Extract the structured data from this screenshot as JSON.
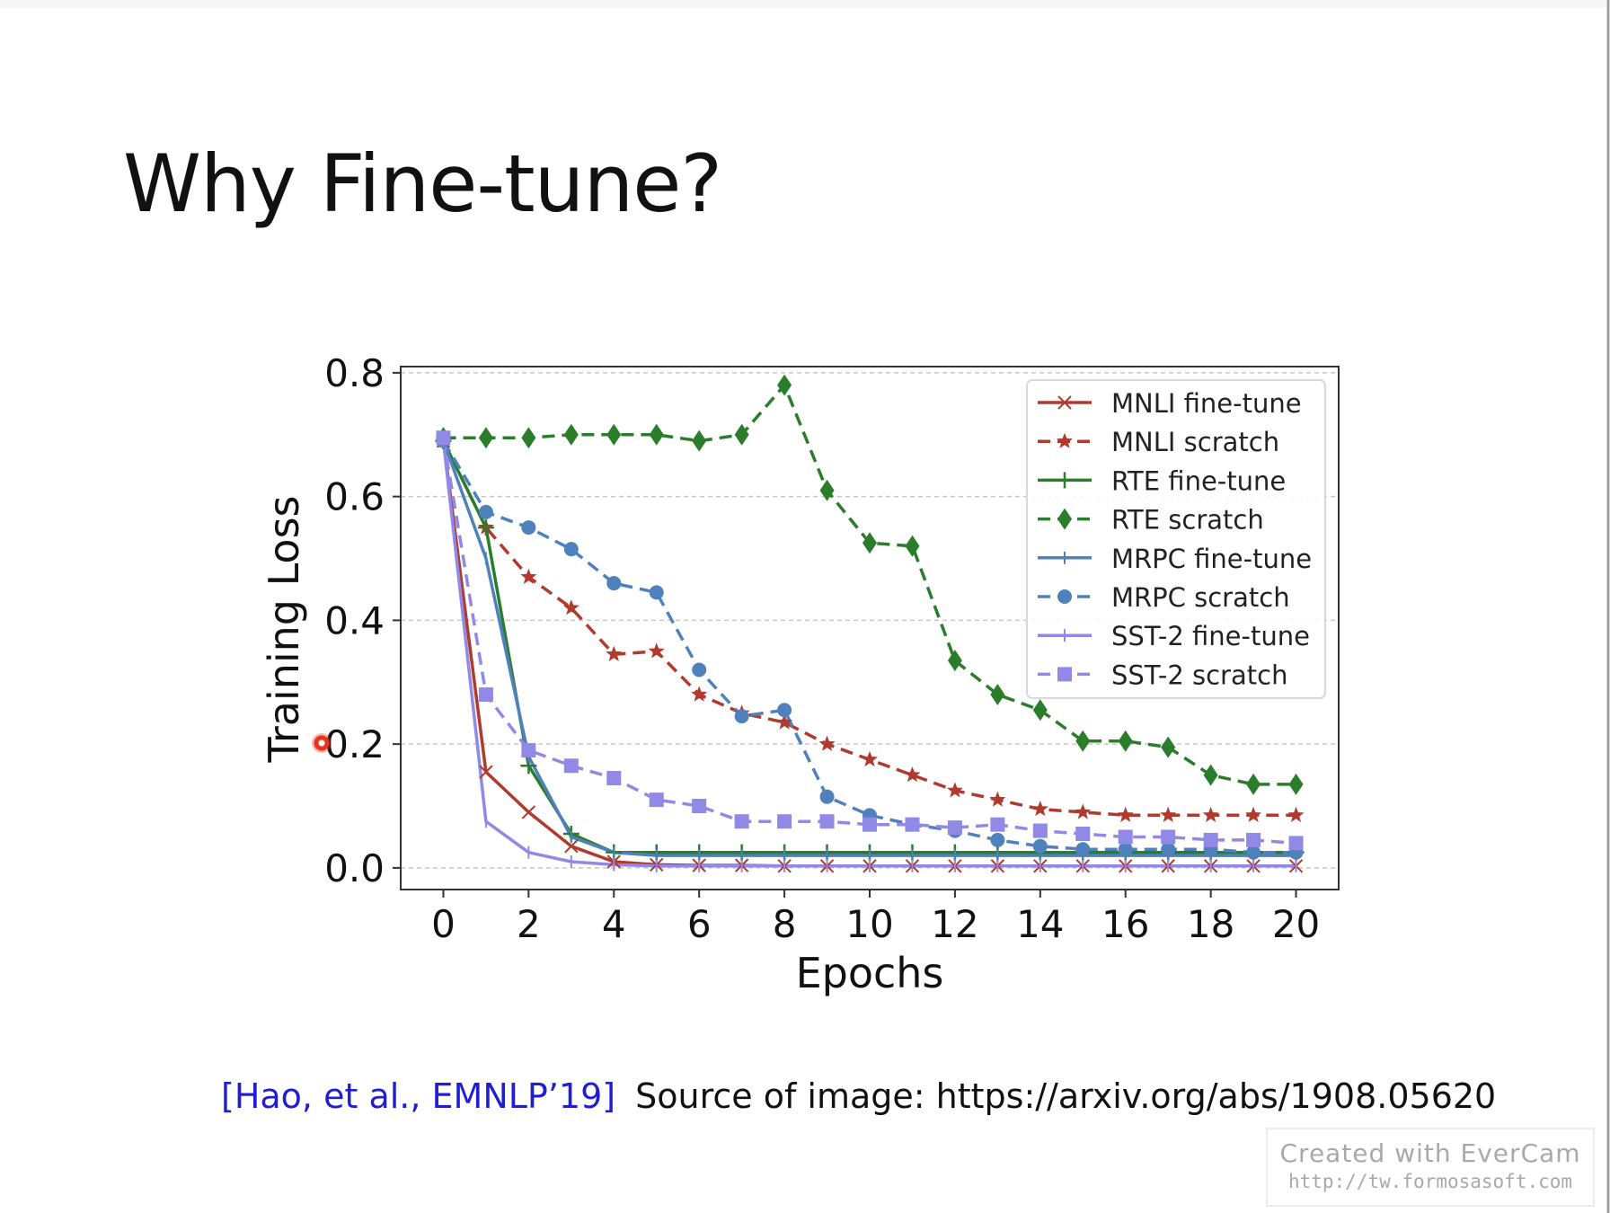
{
  "slide": {
    "title": "Why Fine-tune?",
    "citation_ref": "[Hao, et al., EMNLP’19]",
    "citation_source": "Source of image: https://arxiv.org/abs/1908.05620",
    "watermark_line1": "Created  with  EverCam",
    "watermark_line2": "http://tw.formosasoft.com",
    "accent_link_color": "#1f1fd1"
  },
  "chart_data": {
    "type": "line",
    "title": "",
    "xlabel": "Epochs",
    "ylabel": "Training Loss",
    "xlim": [
      -1,
      21
    ],
    "ylim": [
      -0.035,
      0.81
    ],
    "xticks": [
      0,
      2,
      4,
      6,
      8,
      10,
      12,
      14,
      16,
      18,
      20
    ],
    "yticks": [
      0.0,
      0.2,
      0.4,
      0.6,
      0.8
    ],
    "grid": "horizontal dashed",
    "legend_position": "top-right",
    "x": [
      0,
      1,
      2,
      3,
      4,
      5,
      6,
      7,
      8,
      9,
      10,
      11,
      12,
      13,
      14,
      15,
      16,
      17,
      18,
      19,
      20
    ],
    "series": [
      {
        "name": "MNLI fine-tune",
        "color": "#b03a2e",
        "dashed": false,
        "marker": "x",
        "values": [
          0.69,
          0.155,
          0.09,
          0.035,
          0.01,
          0.005,
          0.004,
          0.004,
          0.003,
          0.003,
          0.003,
          0.003,
          0.003,
          0.003,
          0.003,
          0.003,
          0.003,
          0.003,
          0.003,
          0.003,
          0.003
        ]
      },
      {
        "name": "MNLI scratch",
        "color": "#b03a2e",
        "dashed": true,
        "marker": "star",
        "values": [
          0.69,
          0.55,
          0.47,
          0.42,
          0.345,
          0.35,
          0.28,
          0.25,
          0.235,
          0.2,
          0.175,
          0.15,
          0.125,
          0.11,
          0.095,
          0.09,
          0.085,
          0.085,
          0.085,
          0.085,
          0.085
        ]
      },
      {
        "name": "RTE fine-tune",
        "color": "#2a7d2a",
        "dashed": false,
        "marker": "plus",
        "values": [
          0.69,
          0.55,
          0.165,
          0.055,
          0.025,
          0.025,
          0.025,
          0.025,
          0.025,
          0.025,
          0.025,
          0.025,
          0.025,
          0.025,
          0.025,
          0.025,
          0.025,
          0.025,
          0.025,
          0.025,
          0.025
        ]
      },
      {
        "name": "RTE scratch",
        "color": "#2a7d2a",
        "dashed": true,
        "marker": "diamond",
        "values": [
          0.695,
          0.695,
          0.695,
          0.7,
          0.7,
          0.7,
          0.69,
          0.7,
          0.78,
          0.61,
          0.525,
          0.52,
          0.335,
          0.28,
          0.255,
          0.205,
          0.205,
          0.195,
          0.15,
          0.135,
          0.135
        ]
      },
      {
        "name": "MRPC fine-tune",
        "color": "#4f81bd",
        "dashed": false,
        "marker": "tick",
        "values": [
          0.69,
          0.5,
          0.18,
          0.05,
          0.025,
          0.02,
          0.02,
          0.02,
          0.02,
          0.02,
          0.02,
          0.02,
          0.02,
          0.02,
          0.02,
          0.02,
          0.02,
          0.02,
          0.02,
          0.02,
          0.02
        ]
      },
      {
        "name": "MRPC scratch",
        "color": "#4f81bd",
        "dashed": true,
        "marker": "circle",
        "values": [
          0.69,
          0.575,
          0.55,
          0.515,
          0.46,
          0.445,
          0.32,
          0.245,
          0.255,
          0.115,
          0.085,
          0.07,
          0.06,
          0.045,
          0.035,
          0.03,
          0.03,
          0.03,
          0.03,
          0.025,
          0.025
        ]
      },
      {
        "name": "SST-2 fine-tune",
        "color": "#9189e6",
        "dashed": false,
        "marker": "tick",
        "values": [
          0.69,
          0.075,
          0.025,
          0.01,
          0.005,
          0.003,
          0.003,
          0.003,
          0.003,
          0.003,
          0.003,
          0.003,
          0.003,
          0.003,
          0.003,
          0.003,
          0.003,
          0.003,
          0.003,
          0.003,
          0.003
        ]
      },
      {
        "name": "SST-2 scratch",
        "color": "#9189e6",
        "dashed": true,
        "marker": "square",
        "values": [
          0.695,
          0.28,
          0.19,
          0.165,
          0.145,
          0.11,
          0.1,
          0.075,
          0.075,
          0.075,
          0.07,
          0.07,
          0.065,
          0.07,
          0.06,
          0.055,
          0.05,
          0.05,
          0.045,
          0.045,
          0.04
        ]
      }
    ]
  }
}
